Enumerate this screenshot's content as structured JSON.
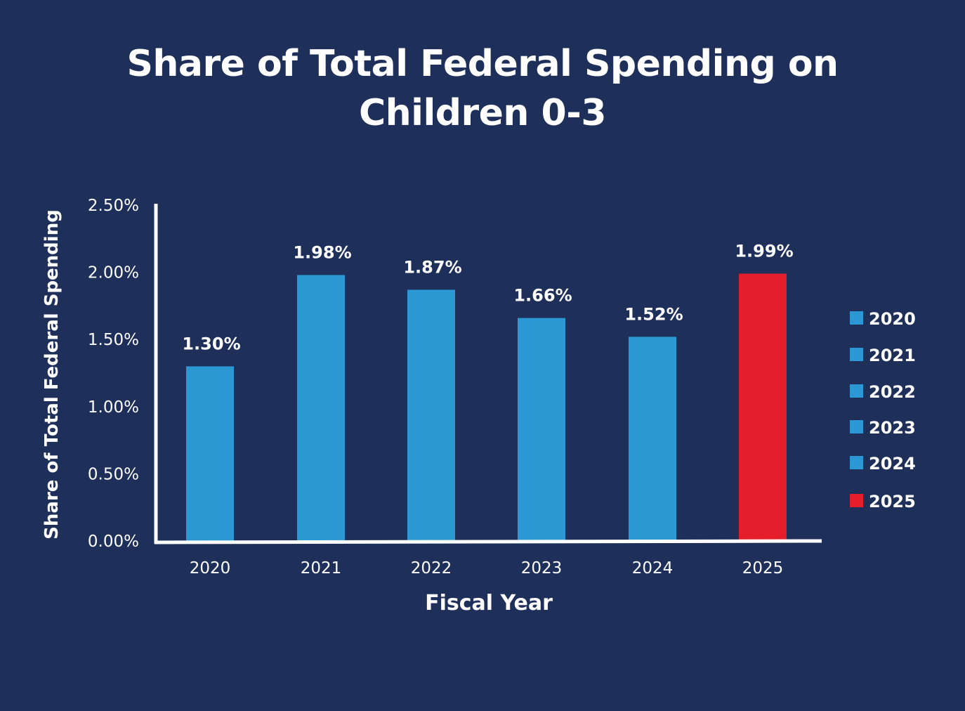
{
  "chart_data": {
    "type": "bar",
    "title_lines": [
      "Share of Total Federal Spending on",
      "Children 0-3"
    ],
    "xlabel": "Fiscal Year",
    "ylabel": "Share of Total Federal Spending",
    "categories": [
      "2020",
      "2021",
      "2022",
      "2023",
      "2024",
      "2025"
    ],
    "values": [
      1.3,
      1.98,
      1.87,
      1.66,
      1.52,
      1.99
    ],
    "value_labels": [
      "1.30%",
      "1.98%",
      "1.87%",
      "1.66%",
      "1.52%",
      "1.99%"
    ],
    "yticks": [
      0,
      0.5,
      1.0,
      1.5,
      2.0,
      2.5
    ],
    "ytick_labels": [
      "0.00%",
      "0.50%",
      "1.00%",
      "1.50%",
      "2.00%",
      "2.50%"
    ],
    "ylim": [
      0,
      2.5
    ],
    "grid": false,
    "legend_position": "right",
    "legend": [
      "2020",
      "2021",
      "2022",
      "2023",
      "2024",
      "2025"
    ],
    "colors": {
      "default_bar": "#2b98d4",
      "highlight_bar": "#e51e2b",
      "background": "#1e2f5a",
      "axis": "#ffffff"
    },
    "bar_colors": [
      "#2b98d4",
      "#2b98d4",
      "#2b98d4",
      "#2b98d4",
      "#2b98d4",
      "#e51e2b"
    ]
  }
}
